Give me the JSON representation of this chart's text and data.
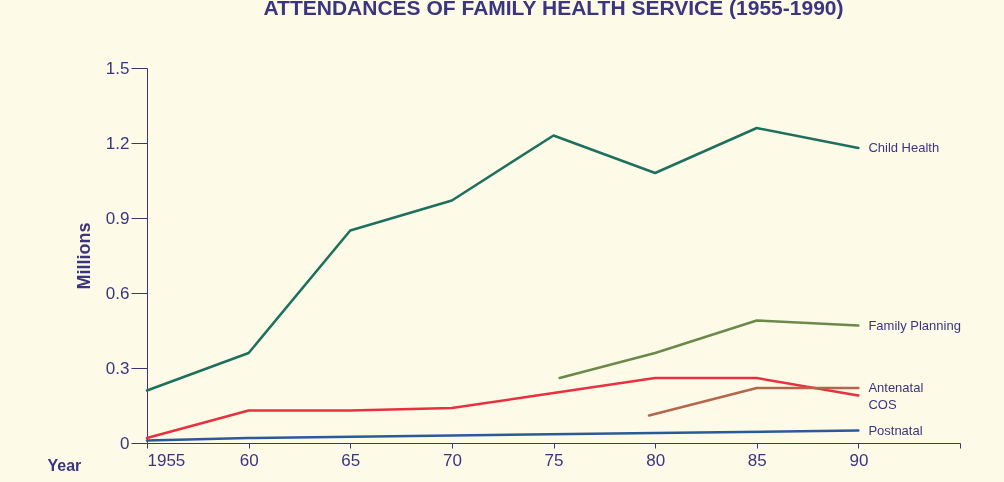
{
  "chart_data": {
    "type": "line",
    "title": "ATTENDANCES OF FAMILY HEALTH SERVICE (1955-1990)",
    "xlabel": "Year",
    "ylabel": "Millions",
    "xlim": [
      1955,
      1995
    ],
    "xticks": [
      1955,
      {
        "value": 1960,
        "label": "60"
      },
      {
        "value": 1965,
        "label": "65"
      },
      {
        "value": 1970,
        "label": "70"
      },
      {
        "value": 1975,
        "label": "75"
      },
      {
        "value": 1980,
        "label": "80"
      },
      {
        "value": 1985,
        "label": "85"
      },
      {
        "value": 1990,
        "label": "90"
      },
      {
        "value": 1995,
        "label": null
      }
    ],
    "ylim": [
      0,
      1.5
    ],
    "yticks": [
      0,
      0.3,
      0.6,
      0.9,
      1.2,
      1.5
    ],
    "grid": false,
    "marker": "none",
    "line_style": "solid",
    "series": [
      {
        "name": "Child Health",
        "color": "#1f6f5f",
        "x": [
          1955,
          1960,
          1965,
          1970,
          1975,
          1980,
          1985,
          1990
        ],
        "values": [
          0.21,
          0.36,
          0.85,
          0.97,
          1.23,
          1.08,
          1.26,
          1.18
        ]
      },
      {
        "name": "Family Planning",
        "color": "#6b8a4a",
        "x": [
          1975.3,
          1980,
          1985,
          1990
        ],
        "values": [
          0.26,
          0.36,
          0.49,
          0.47
        ]
      },
      {
        "name": "COS",
        "color": "#e8303f",
        "x": [
          1955,
          1960,
          1965,
          1970,
          1975,
          1980,
          1985,
          1990
        ],
        "values": [
          0.02,
          0.13,
          0.13,
          0.14,
          0.2,
          0.26,
          0.26,
          0.19
        ]
      },
      {
        "name": "Antenatal",
        "color": "#b5654a",
        "x": [
          1979.7,
          1985,
          1990
        ],
        "values": [
          0.11,
          0.22,
          0.22
        ]
      },
      {
        "name": "Postnatal",
        "color": "#2a5a9a",
        "x": [
          1955,
          1960,
          1970,
          1980,
          1990
        ],
        "values": [
          0.01,
          0.02,
          0.03,
          0.04,
          0.05
        ]
      }
    ]
  }
}
